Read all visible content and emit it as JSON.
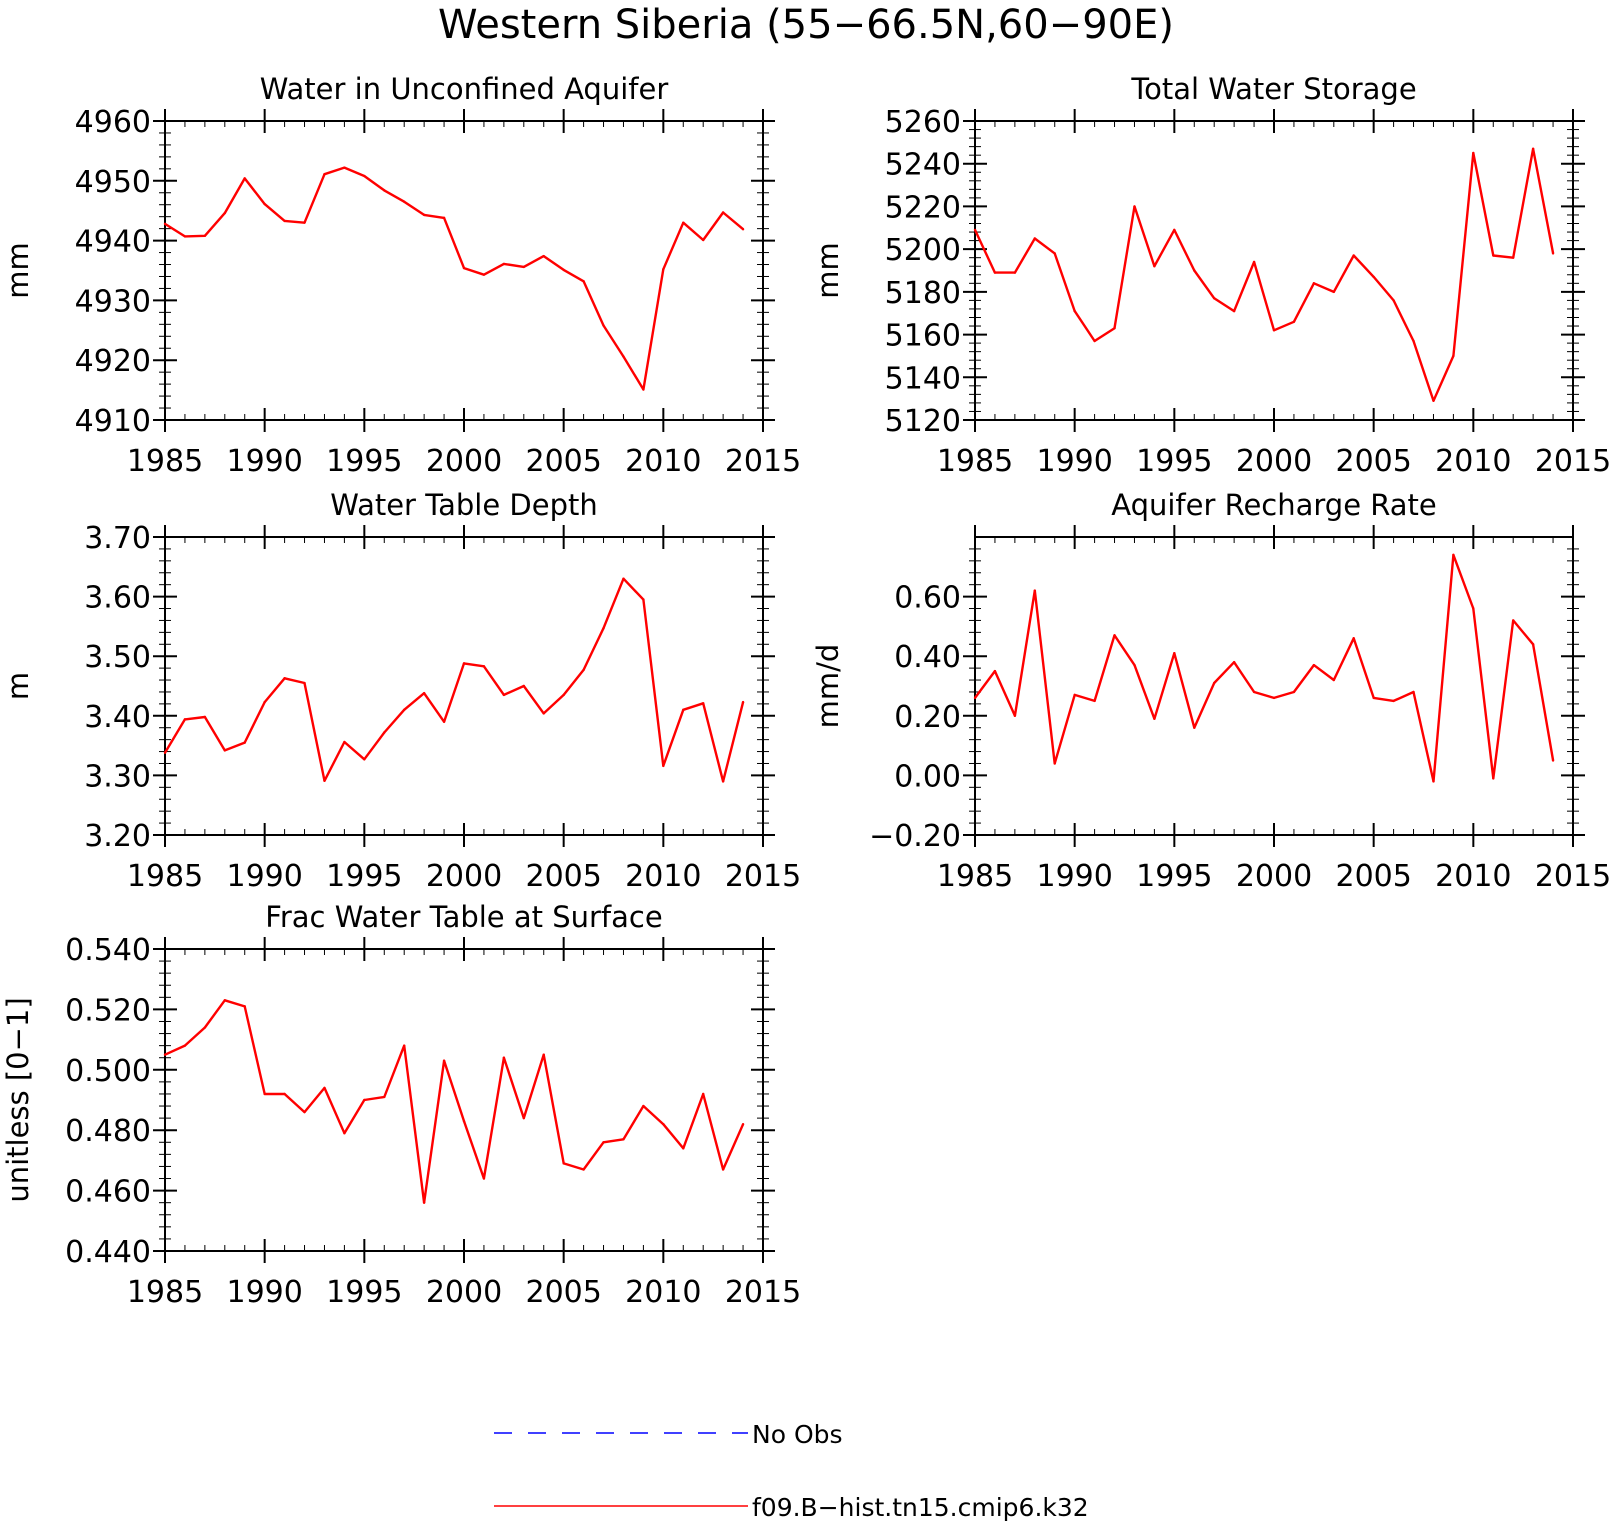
{
  "figure_title": "Western Siberia (55-66.5N,60-90E)",
  "colors": {
    "model": "#ff0000",
    "obs": "#0000ff",
    "axis": "#000000"
  },
  "legend": [
    {
      "label": "No Obs",
      "style": "dashed",
      "color": "#0000ff"
    },
    {
      "label": "f09.B-hist.tn15.cmip6.k32",
      "style": "solid",
      "color": "#ff0000"
    }
  ],
  "chart_data": [
    {
      "type": "line",
      "title": "Water in Unconfined Aquifer",
      "ylabel": "mm",
      "xlim": [
        1985,
        2015
      ],
      "ylim": [
        4910,
        4960
      ],
      "xticks": [
        1985,
        1990,
        1995,
        2000,
        2005,
        2010,
        2015
      ],
      "yticks": [
        "4910",
        "4920",
        "4930",
        "4940",
        "4950",
        "4960"
      ],
      "x": [
        1985,
        1986,
        1987,
        1988,
        1989,
        1990,
        1991,
        1992,
        1993,
        1994,
        1995,
        1996,
        1997,
        1998,
        1999,
        2000,
        2001,
        2002,
        2003,
        2004,
        2005,
        2006,
        2007,
        2008,
        2009,
        2010,
        2011,
        2012,
        2013,
        2014
      ],
      "series": [
        {
          "name": "f09.B-hist.tn15.cmip6.k32",
          "values": [
            4942.8,
            4940.7,
            4940.8,
            4944.6,
            4950.4,
            4946.1,
            4943.3,
            4943.0,
            4951.1,
            4952.2,
            4950.8,
            4948.4,
            4946.5,
            4944.3,
            4943.8,
            4935.4,
            4934.3,
            4936.1,
            4935.6,
            4937.4,
            4935.1,
            4933.2,
            4925.8,
            4920.6,
            4915.1,
            4935.2,
            4943.0,
            4940.1,
            4944.7,
            4941.9
          ]
        }
      ]
    },
    {
      "type": "line",
      "title": "Total Water Storage",
      "ylabel": "mm",
      "xlim": [
        1985,
        2015
      ],
      "ylim": [
        5120,
        5260
      ],
      "xticks": [
        1985,
        1990,
        1995,
        2000,
        2005,
        2010,
        2015
      ],
      "yticks": [
        "5120",
        "5140",
        "5160",
        "5180",
        "5200",
        "5220",
        "5240",
        "5260"
      ],
      "x": [
        1985,
        1986,
        1987,
        1988,
        1989,
        1990,
        1991,
        1992,
        1993,
        1994,
        1995,
        1996,
        1997,
        1998,
        1999,
        2000,
        2001,
        2002,
        2003,
        2004,
        2005,
        2006,
        2007,
        2008,
        2009,
        2010,
        2011,
        2012,
        2013,
        2014
      ],
      "series": [
        {
          "name": "f09.B-hist.tn15.cmip6.k32",
          "values": [
            5209,
            5189,
            5189,
            5205,
            5198,
            5171,
            5157,
            5163,
            5220,
            5192,
            5209,
            5190,
            5177,
            5171,
            5194,
            5162,
            5166,
            5184,
            5180,
            5197,
            5187,
            5176,
            5157,
            5129,
            5150,
            5245,
            5197,
            5196,
            5247,
            5198
          ]
        }
      ]
    },
    {
      "type": "line",
      "title": "Water Table Depth",
      "ylabel": "m",
      "xlim": [
        1985,
        2015
      ],
      "ylim": [
        3.2,
        3.7
      ],
      "xticks": [
        1985,
        1990,
        1995,
        2000,
        2005,
        2010,
        2015
      ],
      "yticks": [
        "3.20",
        "3.30",
        "3.40",
        "3.50",
        "3.60",
        "3.70"
      ],
      "x": [
        1985,
        1986,
        1987,
        1988,
        1989,
        1990,
        1991,
        1992,
        1993,
        1994,
        1995,
        1996,
        1997,
        1998,
        1999,
        2000,
        2001,
        2002,
        2003,
        2004,
        2005,
        2006,
        2007,
        2008,
        2009,
        2010,
        2011,
        2012,
        2013,
        2014
      ],
      "series": [
        {
          "name": "f09.B-hist.tn15.cmip6.k32",
          "values": [
            3.338,
            3.394,
            3.398,
            3.342,
            3.355,
            3.423,
            3.463,
            3.455,
            3.291,
            3.356,
            3.327,
            3.372,
            3.41,
            3.438,
            3.39,
            3.488,
            3.483,
            3.435,
            3.45,
            3.404,
            3.435,
            3.477,
            3.547,
            3.63,
            3.595,
            3.316,
            3.41,
            3.421,
            3.29,
            3.423
          ]
        }
      ]
    },
    {
      "type": "line",
      "title": "Aquifer Recharge Rate",
      "ylabel": "mm/d",
      "xlim": [
        1985,
        2015
      ],
      "ylim": [
        -0.2,
        0.8
      ],
      "xticks": [
        1985,
        1990,
        1995,
        2000,
        2005,
        2010,
        2015
      ],
      "yticks": [
        "-0.20",
        "0.00",
        "0.20",
        "0.40",
        "0.60"
      ],
      "x": [
        1985,
        1986,
        1987,
        1988,
        1989,
        1990,
        1991,
        1992,
        1993,
        1994,
        1995,
        1996,
        1997,
        1998,
        1999,
        2000,
        2001,
        2002,
        2003,
        2004,
        2005,
        2006,
        2007,
        2008,
        2009,
        2010,
        2011,
        2012,
        2013,
        2014
      ],
      "series": [
        {
          "name": "f09.B-hist.tn15.cmip6.k32",
          "values": [
            0.26,
            0.35,
            0.2,
            0.62,
            0.04,
            0.27,
            0.25,
            0.47,
            0.37,
            0.19,
            0.41,
            0.16,
            0.31,
            0.38,
            0.28,
            0.26,
            0.28,
            0.37,
            0.32,
            0.46,
            0.26,
            0.25,
            0.28,
            -0.02,
            0.74,
            0.56,
            -0.01,
            0.52,
            0.44,
            0.05
          ]
        }
      ]
    },
    {
      "type": "line",
      "title": "Frac Water Table at Surface",
      "ylabel": "unitless [0-1]",
      "xlim": [
        1985,
        2015
      ],
      "ylim": [
        0.44,
        0.54
      ],
      "xticks": [
        1985,
        1990,
        1995,
        2000,
        2005,
        2010,
        2015
      ],
      "yticks": [
        "0.440",
        "0.460",
        "0.480",
        "0.500",
        "0.520",
        "0.540"
      ],
      "x": [
        1985,
        1986,
        1987,
        1988,
        1989,
        1990,
        1991,
        1992,
        1993,
        1994,
        1995,
        1996,
        1997,
        1998,
        1999,
        2000,
        2001,
        2002,
        2003,
        2004,
        2005,
        2006,
        2007,
        2008,
        2009,
        2010,
        2011,
        2012,
        2013,
        2014
      ],
      "series": [
        {
          "name": "f09.B-hist.tn15.cmip6.k32",
          "values": [
            0.505,
            0.508,
            0.514,
            0.523,
            0.521,
            0.492,
            0.492,
            0.486,
            0.494,
            0.479,
            0.49,
            0.491,
            0.508,
            0.456,
            0.503,
            0.483,
            0.464,
            0.504,
            0.484,
            0.505,
            0.469,
            0.467,
            0.476,
            0.477,
            0.488,
            0.482,
            0.474,
            0.492,
            0.467,
            0.482
          ]
        }
      ]
    }
  ]
}
